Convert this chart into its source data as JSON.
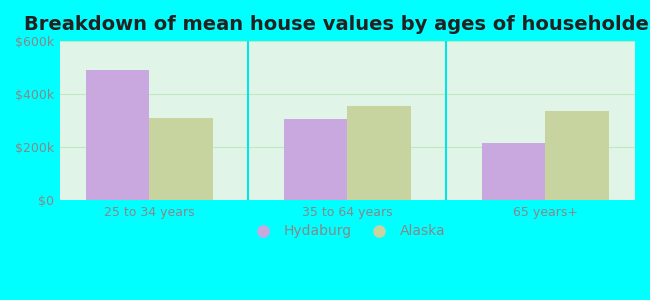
{
  "title": "Breakdown of mean house values by ages of householders",
  "categories": [
    "25 to 34 years",
    "35 to 64 years",
    "65 years+"
  ],
  "hydaburg_values": [
    490000,
    305000,
    215000
  ],
  "alaska_values": [
    310000,
    355000,
    335000
  ],
  "hydaburg_color": "#c9a8e0",
  "alaska_color": "#c8d4a0",
  "ylim": [
    0,
    600000
  ],
  "yticks": [
    0,
    200000,
    400000,
    600000
  ],
  "ytick_labels": [
    "$0",
    "$200k",
    "$400k",
    "$600k"
  ],
  "bar_width": 0.32,
  "background_color": "#00ffff",
  "plot_bg_top": "#d8f5d8",
  "plot_bg_bottom": "#e8fef8",
  "grid_color": "#c0e8c0",
  "legend_hydaburg": "Hydaburg",
  "legend_alaska": "Alaska",
  "title_fontsize": 14,
  "tick_fontsize": 9,
  "legend_fontsize": 10,
  "tick_color": "#888888",
  "separator_color": "#00e5e5"
}
